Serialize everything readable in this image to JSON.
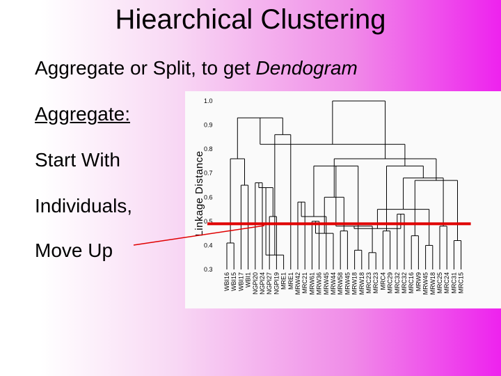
{
  "slide": {
    "title": "Hiearchical Clustering",
    "subtitle_prefix": "Aggregate or Split, to get ",
    "subtitle_emphasis": "Dendogram",
    "bullets": [
      "Aggregate:",
      "Start With",
      "Individuals,",
      "Move Up"
    ]
  },
  "chart_data": {
    "type": "dendrogram",
    "ylabel": "Linkage Distance",
    "yticks": [
      "1.0",
      "0.9",
      "0.8",
      "0.7",
      "0.6",
      "0.5",
      "0.4",
      "0.3"
    ],
    "ylim": [
      0.3,
      1.0
    ],
    "leaves": [
      "WBI16",
      "WBI15",
      "WBI17",
      "WBI1",
      "NGPI20",
      "NGPI24",
      "NGPI27",
      "NGPI19",
      "MRE1",
      "MRE1",
      "MRW42",
      "MRC21",
      "MRW61",
      "MRW36",
      "MRW45",
      "MRW44",
      "MRW58",
      "MRW45",
      "MRW18",
      "MRW18",
      "MRC23",
      "MRC23",
      "MRC4",
      "MRC29",
      "MRC32",
      "MRC32",
      "MRC16",
      "MRW9",
      "MRW45",
      "MRW18",
      "MRC25",
      "MRC24",
      "MRC31",
      "MRC15"
    ],
    "cut_height": 0.49,
    "colors": {
      "cut_line": "#e00000",
      "tree": "#000000"
    },
    "merges": [
      [
        0,
        1,
        0.41
      ],
      [
        2,
        3,
        0.65
      ],
      [
        34,
        35,
        0.76
      ],
      [
        4,
        5,
        0.66
      ],
      [
        6,
        7,
        0.52
      ],
      [
        37,
        38,
        0.64
      ],
      [
        39,
        8,
        0.36
      ],
      [
        40,
        9,
        0.86
      ],
      [
        36,
        41,
        0.93
      ],
      [
        10,
        11,
        0.58
      ],
      [
        12,
        13,
        0.5
      ],
      [
        43,
        14,
        0.52
      ],
      [
        44,
        15,
        0.45
      ],
      [
        16,
        17,
        0.46
      ],
      [
        18,
        19,
        0.38
      ],
      [
        46,
        47,
        0.6
      ],
      [
        45,
        48,
        0.73
      ],
      [
        20,
        21,
        0.37
      ],
      [
        22,
        23,
        0.46
      ],
      [
        50,
        51,
        0.48
      ],
      [
        24,
        25,
        0.53
      ],
      [
        26,
        27,
        0.44
      ],
      [
        53,
        54,
        0.47
      ],
      [
        28,
        29,
        0.4
      ],
      [
        30,
        31,
        0.48
      ],
      [
        56,
        57,
        0.55
      ],
      [
        32,
        33,
        0.42
      ],
      [
        58,
        59,
        0.68
      ],
      [
        55,
        60,
        0.67
      ],
      [
        52,
        61,
        0.73
      ],
      [
        49,
        62,
        0.76
      ],
      [
        42,
        63,
        0.82
      ],
      [
        64,
        65,
        1.0
      ]
    ]
  }
}
